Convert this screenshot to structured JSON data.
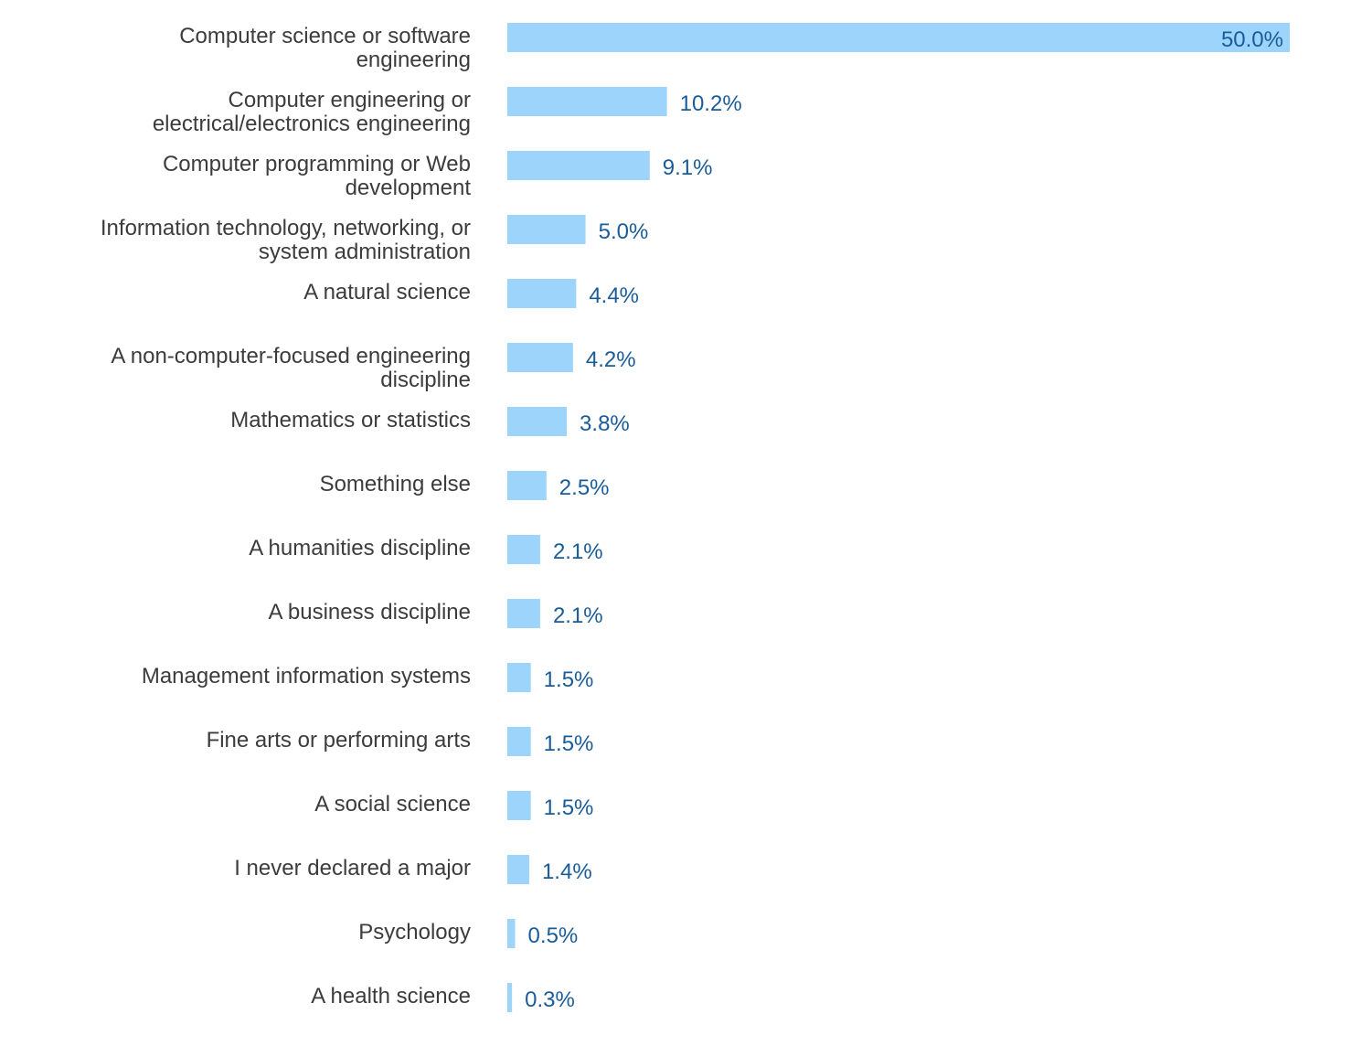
{
  "chart_data": {
    "type": "bar",
    "orientation": "horizontal",
    "categories": [
      [
        "Computer science or software",
        "engineering"
      ],
      [
        "Computer engineering or",
        "electrical/electronics engineering"
      ],
      [
        "Computer programming or Web",
        "development"
      ],
      [
        "Information technology, networking, or",
        "system administration"
      ],
      [
        "A natural science"
      ],
      [
        "A non-computer-focused engineering",
        "discipline"
      ],
      [
        "Mathematics or statistics"
      ],
      [
        "Something else"
      ],
      [
        "A humanities discipline"
      ],
      [
        "A business discipline"
      ],
      [
        "Management information systems"
      ],
      [
        "Fine arts or performing arts"
      ],
      [
        "A social science"
      ],
      [
        "I never declared a major"
      ],
      [
        "Psychology"
      ],
      [
        "A health science"
      ]
    ],
    "values": [
      50.0,
      10.2,
      9.1,
      5.0,
      4.4,
      4.2,
      3.8,
      2.5,
      2.1,
      2.1,
      1.5,
      1.5,
      1.5,
      1.4,
      0.5,
      0.3
    ],
    "value_labels": [
      "50.0%",
      "10.2%",
      "9.1%",
      "5.0%",
      "4.4%",
      "4.2%",
      "3.8%",
      "2.5%",
      "2.1%",
      "2.1%",
      "1.5%",
      "1.5%",
      "1.5%",
      "1.4%",
      "0.5%",
      "0.3%"
    ],
    "xlim": [
      0,
      50
    ],
    "grid": false,
    "legend": "none",
    "title": "",
    "xlabel": "",
    "ylabel": "",
    "colors": {
      "bar": "#9dd4fb",
      "value_text": "#1a5c99",
      "category_text": "#3c3c3c"
    }
  }
}
